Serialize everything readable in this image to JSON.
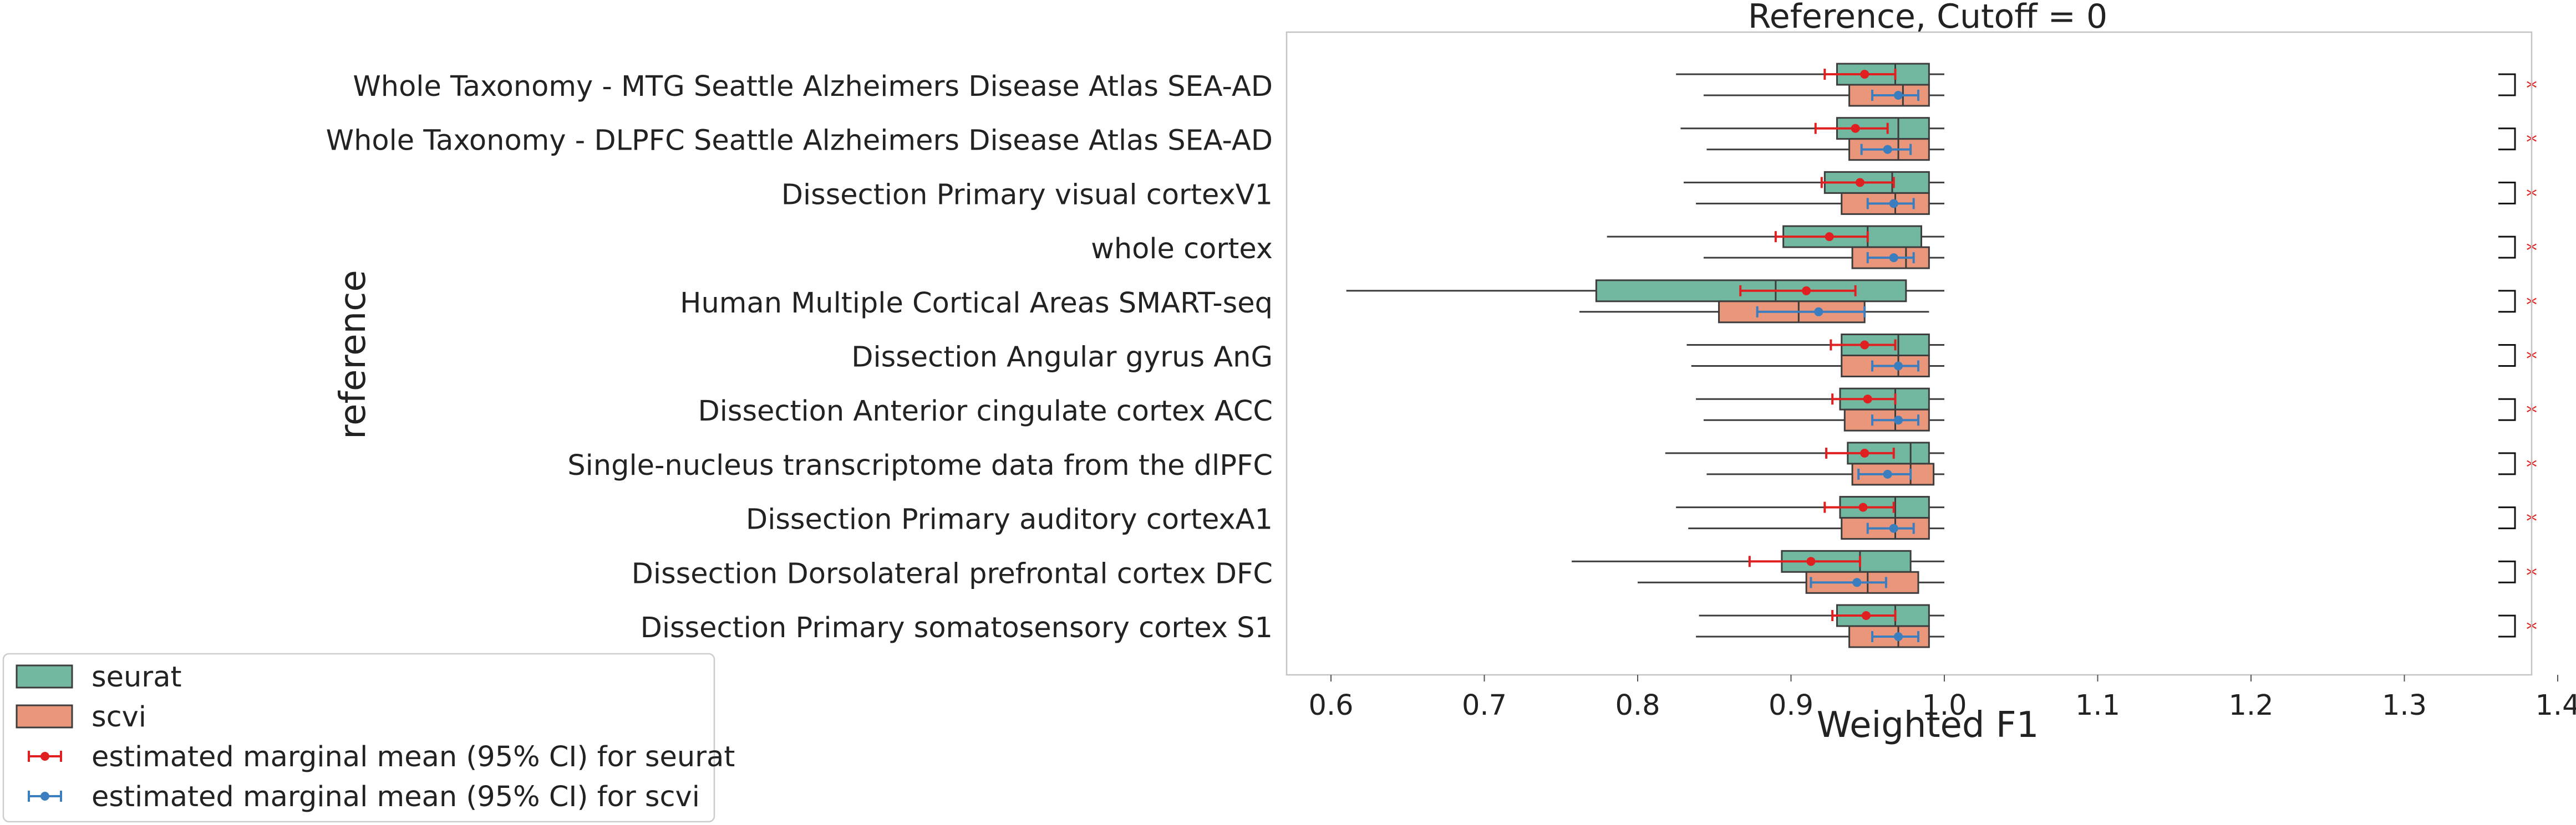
{
  "chart_data": {
    "type": "boxplot",
    "title": "Reference, Cutoff = 0",
    "xlabel": "Weighted F1",
    "ylabel": "reference",
    "xlim": [
      0.57,
      1.4
    ],
    "xticks": [
      0.6,
      0.7,
      0.8,
      0.9,
      1.0,
      1.1,
      1.2,
      1.3,
      1.4
    ],
    "xtick_labels": [
      "0.6",
      "0.7",
      "0.8",
      "0.9",
      "1.0",
      "1.1",
      "1.2",
      "1.3",
      "1.4"
    ],
    "grid": false,
    "legend_position": "lower-left outside",
    "categories": [
      "Whole Taxonomy - MTG Seattle Alzheimers Disease Atlas SEA-AD",
      "Whole Taxonomy - DLPFC Seattle Alzheimers Disease Atlas SEA-AD",
      "Dissection Primary visual cortexV1",
      "whole cortex",
      "Human Multiple Cortical Areas SMART-seq",
      "Dissection Angular gyrus AnG",
      "Dissection Anterior cingulate cortex ACC",
      "Single-nucleus transcriptome data from the dlPFC",
      "Dissection Primary auditory cortexA1",
      "Dissection Dorsolateral prefrontal cortex DFC",
      "Dissection Primary somatosensory cortex S1"
    ],
    "series": [
      {
        "name": "seurat",
        "color": "#72b8a0",
        "boxes": [
          {
            "whislo": 0.825,
            "q1": 0.93,
            "med": 0.968,
            "q3": 0.99,
            "whishi": 1.0
          },
          {
            "whislo": 0.828,
            "q1": 0.93,
            "med": 0.97,
            "q3": 0.99,
            "whishi": 1.0
          },
          {
            "whislo": 0.83,
            "q1": 0.922,
            "med": 0.966,
            "q3": 0.99,
            "whishi": 1.0
          },
          {
            "whislo": 0.78,
            "q1": 0.895,
            "med": 0.95,
            "q3": 0.985,
            "whishi": 1.0
          },
          {
            "whislo": 0.61,
            "q1": 0.773,
            "med": 0.89,
            "q3": 0.975,
            "whishi": 1.0
          },
          {
            "whislo": 0.832,
            "q1": 0.933,
            "med": 0.97,
            "q3": 0.99,
            "whishi": 1.0
          },
          {
            "whislo": 0.838,
            "q1": 0.932,
            "med": 0.968,
            "q3": 0.99,
            "whishi": 1.0
          },
          {
            "whislo": 0.818,
            "q1": 0.937,
            "med": 0.978,
            "q3": 0.99,
            "whishi": 1.0
          },
          {
            "whislo": 0.825,
            "q1": 0.932,
            "med": 0.968,
            "q3": 0.99,
            "whishi": 1.0
          },
          {
            "whislo": 0.757,
            "q1": 0.894,
            "med": 0.945,
            "q3": 0.978,
            "whishi": 1.0
          },
          {
            "whislo": 0.84,
            "q1": 0.93,
            "med": 0.968,
            "q3": 0.99,
            "whishi": 1.0
          }
        ],
        "emm": [
          {
            "mean": 0.948,
            "lo": 0.922,
            "hi": 0.968
          },
          {
            "mean": 0.942,
            "lo": 0.916,
            "hi": 0.963
          },
          {
            "mean": 0.945,
            "lo": 0.92,
            "hi": 0.967
          },
          {
            "mean": 0.925,
            "lo": 0.89,
            "hi": 0.95
          },
          {
            "mean": 0.91,
            "lo": 0.867,
            "hi": 0.942
          },
          {
            "mean": 0.948,
            "lo": 0.926,
            "hi": 0.968
          },
          {
            "mean": 0.95,
            "lo": 0.927,
            "hi": 0.968
          },
          {
            "mean": 0.948,
            "lo": 0.923,
            "hi": 0.967
          },
          {
            "mean": 0.947,
            "lo": 0.922,
            "hi": 0.967
          },
          {
            "mean": 0.913,
            "lo": 0.873,
            "hi": 0.945
          },
          {
            "mean": 0.949,
            "lo": 0.927,
            "hi": 0.968
          }
        ]
      },
      {
        "name": "scvi",
        "color": "#e9967a",
        "boxes": [
          {
            "whislo": 0.843,
            "q1": 0.938,
            "med": 0.973,
            "q3": 0.99,
            "whishi": 1.0
          },
          {
            "whislo": 0.845,
            "q1": 0.938,
            "med": 0.97,
            "q3": 0.99,
            "whishi": 1.0
          },
          {
            "whislo": 0.838,
            "q1": 0.933,
            "med": 0.968,
            "q3": 0.99,
            "whishi": 1.0
          },
          {
            "whislo": 0.843,
            "q1": 0.94,
            "med": 0.975,
            "q3": 0.99,
            "whishi": 1.0
          },
          {
            "whislo": 0.762,
            "q1": 0.853,
            "med": 0.905,
            "q3": 0.948,
            "whishi": 0.99
          },
          {
            "whislo": 0.835,
            "q1": 0.933,
            "med": 0.97,
            "q3": 0.99,
            "whishi": 1.0
          },
          {
            "whislo": 0.843,
            "q1": 0.935,
            "med": 0.968,
            "q3": 0.99,
            "whishi": 1.0
          },
          {
            "whislo": 0.845,
            "q1": 0.94,
            "med": 0.978,
            "q3": 0.993,
            "whishi": 1.0
          },
          {
            "whislo": 0.833,
            "q1": 0.933,
            "med": 0.968,
            "q3": 0.99,
            "whishi": 1.0
          },
          {
            "whislo": 0.8,
            "q1": 0.91,
            "med": 0.95,
            "q3": 0.983,
            "whishi": 1.0
          },
          {
            "whislo": 0.838,
            "q1": 0.938,
            "med": 0.97,
            "q3": 0.99,
            "whishi": 1.0
          }
        ],
        "emm": [
          {
            "mean": 0.97,
            "lo": 0.953,
            "hi": 0.983
          },
          {
            "mean": 0.963,
            "lo": 0.946,
            "hi": 0.978
          },
          {
            "mean": 0.967,
            "lo": 0.95,
            "hi": 0.98
          },
          {
            "mean": 0.967,
            "lo": 0.95,
            "hi": 0.98
          },
          {
            "mean": 0.918,
            "lo": 0.878,
            "hi": 0.948
          },
          {
            "mean": 0.97,
            "lo": 0.953,
            "hi": 0.983
          },
          {
            "mean": 0.97,
            "lo": 0.953,
            "hi": 0.983
          },
          {
            "mean": 0.963,
            "lo": 0.944,
            "hi": 0.978
          },
          {
            "mean": 0.967,
            "lo": 0.95,
            "hi": 0.98
          },
          {
            "mean": 0.943,
            "lo": 0.913,
            "hi": 0.962
          },
          {
            "mean": 0.97,
            "lo": 0.953,
            "hi": 0.983
          }
        ]
      }
    ],
    "emm_colors": {
      "seurat": "#e02020",
      "scvi": "#3a7ebf"
    },
    "significance": {
      "label": "*",
      "color": "#e02020",
      "marks": [
        "*",
        "*",
        "*",
        "*",
        "*",
        "*",
        "*",
        "*",
        "*",
        "*",
        "*"
      ]
    },
    "legend": [
      {
        "kind": "patch",
        "series": "seurat",
        "label": "seurat"
      },
      {
        "kind": "patch",
        "series": "scvi",
        "label": "scvi"
      },
      {
        "kind": "errorbar",
        "series": "seurat",
        "label": "estimated marginal mean (95% CI) for seurat"
      },
      {
        "kind": "errorbar",
        "series": "scvi",
        "label": "estimated marginal mean (95% CI) for scvi"
      }
    ]
  }
}
